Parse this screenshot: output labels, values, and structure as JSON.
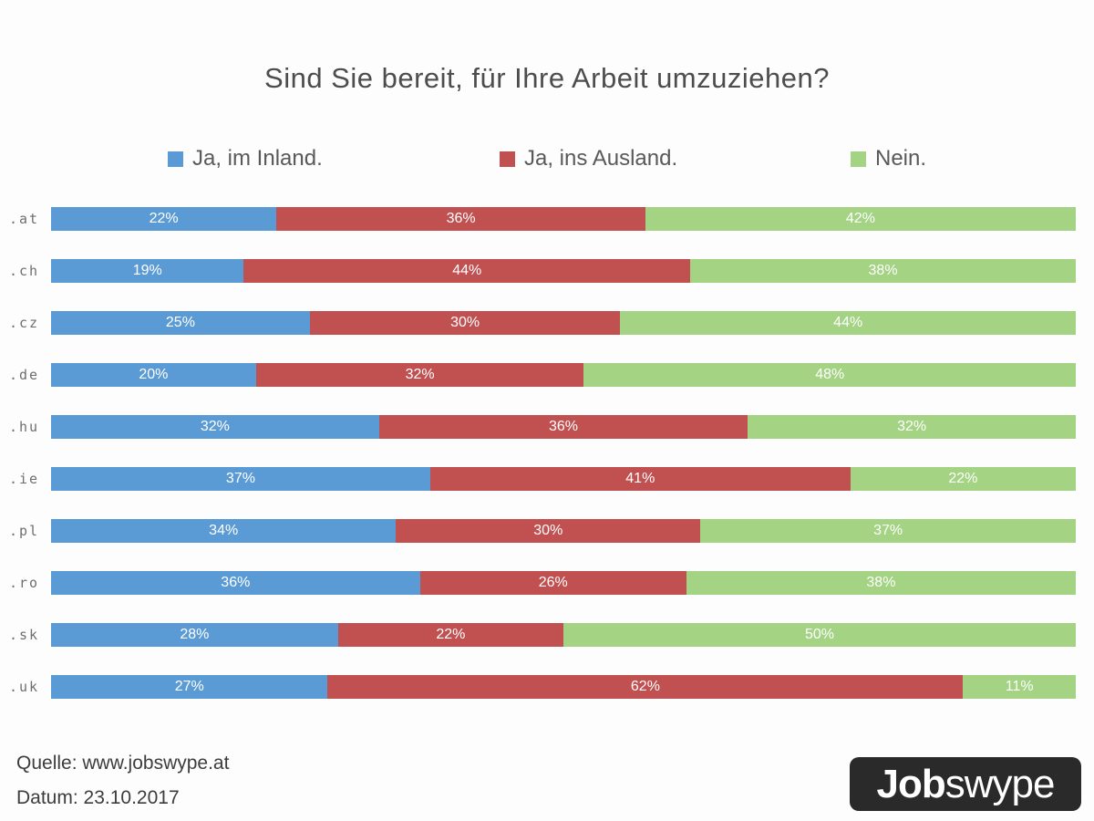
{
  "title": "Sind Sie bereit, für Ihre Arbeit umzuziehen?",
  "legend": [
    {
      "label": "Ja, im Inland.",
      "color": "#5b9bd5"
    },
    {
      "label": "Ja, ins Ausland.",
      "color": "#c15151"
    },
    {
      "label": "Nein.",
      "color": "#a3d383"
    }
  ],
  "chart_data": {
    "type": "bar",
    "stacked": true,
    "orientation": "horizontal",
    "title": "Sind Sie bereit, für Ihre Arbeit umzuziehen?",
    "xlabel": "",
    "ylabel": "",
    "xlim": [
      0,
      100
    ],
    "grid": false,
    "legend_position": "top",
    "value_suffix": "%",
    "categories": [
      ".at",
      ".ch",
      ".cz",
      ".de",
      ".hu",
      ".ie",
      ".pl",
      ".ro",
      ".sk",
      ".uk"
    ],
    "series": [
      {
        "name": "Ja, im Inland.",
        "color": "#5b9bd5",
        "values": [
          22,
          19,
          25,
          20,
          32,
          37,
          34,
          36,
          28,
          27
        ]
      },
      {
        "name": "Ja, ins Ausland.",
        "color": "#c15151",
        "values": [
          36,
          44,
          30,
          32,
          36,
          41,
          30,
          26,
          22,
          62
        ]
      },
      {
        "name": "Nein.",
        "color": "#a3d383",
        "values": [
          42,
          38,
          44,
          48,
          32,
          22,
          37,
          38,
          50,
          11
        ]
      }
    ]
  },
  "footer": {
    "source": "Quelle: www.jobswype.at",
    "date": "Datum: 23.10.2017"
  },
  "logo": {
    "bold": "Job",
    "regular": "swype"
  }
}
